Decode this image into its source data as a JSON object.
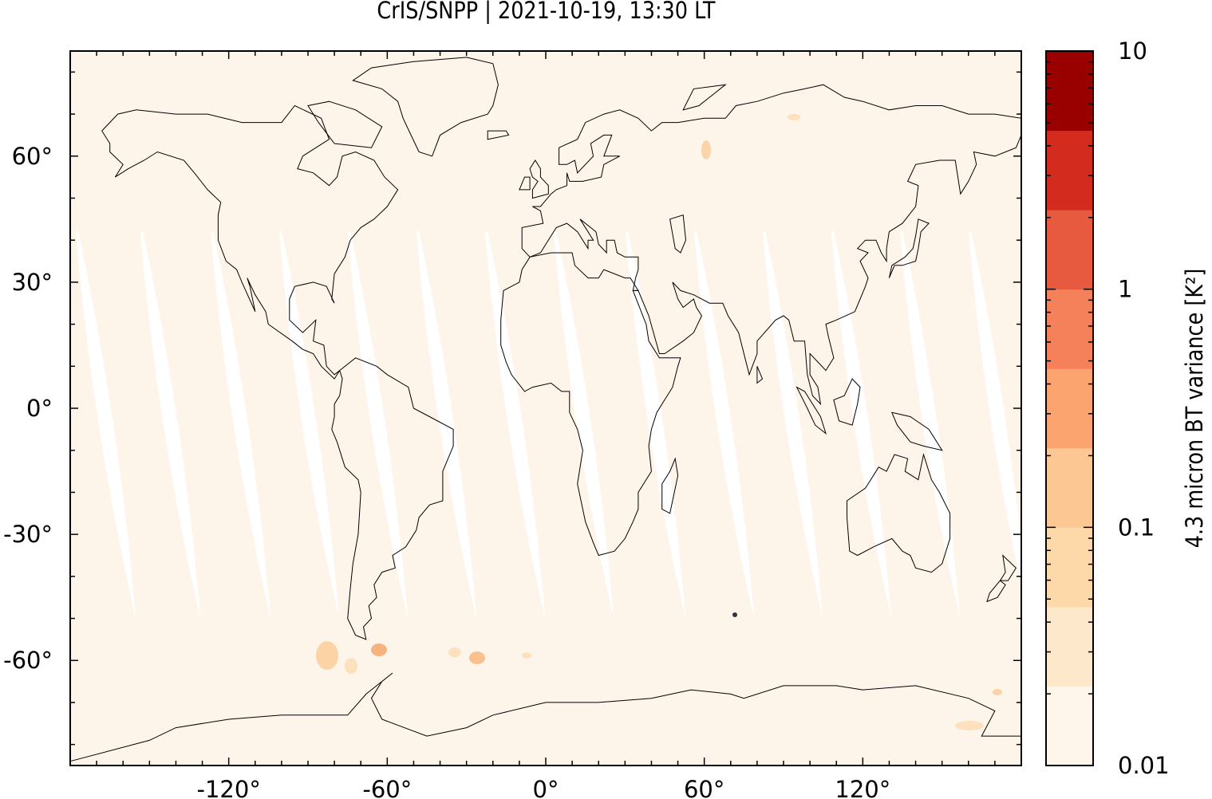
{
  "title": "CrIS/SNPP | 2021-10-19, 13:30 LT",
  "map": {
    "projection": "equirectangular",
    "lon_range": [
      -180,
      180
    ],
    "lat_range": [
      -85,
      85
    ],
    "background_color": "#fef5ea",
    "missing_color": "#ffffff",
    "lon_ticks": [
      {
        "value": -120,
        "label": "-120°"
      },
      {
        "value": -60,
        "label": "-60°"
      },
      {
        "value": 0,
        "label": "0°"
      },
      {
        "value": 60,
        "label": "60°"
      },
      {
        "value": 120,
        "label": "120°"
      }
    ],
    "lat_ticks": [
      {
        "value": 60,
        "label": "60°"
      },
      {
        "value": 30,
        "label": "30°"
      },
      {
        "value": 0,
        "label": "0°"
      },
      {
        "value": -30,
        "label": "-30°"
      },
      {
        "value": -60,
        "label": "-60°"
      }
    ]
  },
  "colorbar": {
    "label": "4.3 micron BT variance [K²]",
    "scale": "log",
    "range": [
      0.01,
      10
    ],
    "ticks": [
      {
        "value": 10,
        "label": "10"
      },
      {
        "value": 1,
        "label": "1"
      },
      {
        "value": 0.1,
        "label": "0.1"
      },
      {
        "value": 0.01,
        "label": "0.01"
      }
    ],
    "colors": [
      "#fef6eb",
      "#fde8cc",
      "#fdd8a8",
      "#fcc792",
      "#fca46f",
      "#f5815a",
      "#e85a40",
      "#d32b1e",
      "#990000"
    ]
  }
}
